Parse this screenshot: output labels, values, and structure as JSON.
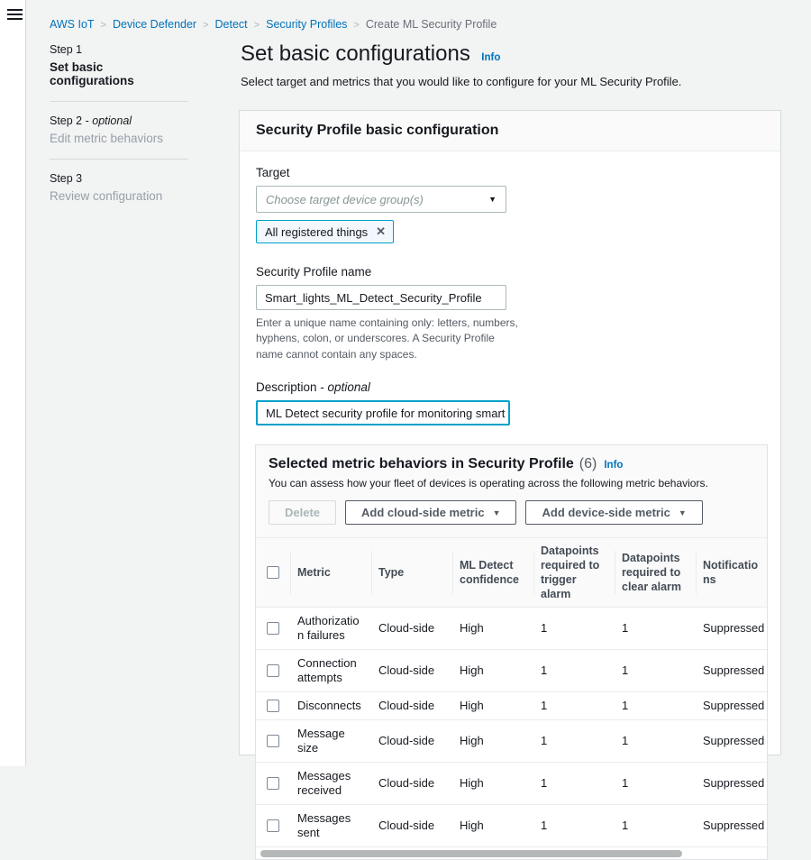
{
  "colors": {
    "link_blue": "#0073bb",
    "focus_teal": "#00a1c9",
    "text_dark": "#16191f",
    "muted": "#545b64"
  },
  "breadcrumb": {
    "separator": ">",
    "items": [
      {
        "label": "AWS IoT",
        "link": true
      },
      {
        "label": "Device Defender",
        "link": true
      },
      {
        "label": "Detect",
        "link": true
      },
      {
        "label": "Security Profiles",
        "link": true
      },
      {
        "label": "Create ML Security Profile",
        "link": false
      }
    ]
  },
  "steps": [
    {
      "step": "Step 1",
      "optional": "",
      "title": "Set basic configurations",
      "active": true
    },
    {
      "step": "Step 2 -",
      "optional": "optional",
      "title": "Edit metric behaviors",
      "active": false
    },
    {
      "step": "Step 3",
      "optional": "",
      "title": "Review configuration",
      "active": false
    }
  ],
  "header": {
    "title": "Set basic configurations",
    "info_label": "Info",
    "description": "Select target and metrics that you would like to configure for your ML Security Profile."
  },
  "card": {
    "title": "Security Profile basic configuration"
  },
  "form": {
    "target": {
      "label": "Target",
      "placeholder": "Choose target device group(s)",
      "caret": "▼",
      "selected_token": "All registered things",
      "remove_icon": "✕"
    },
    "name": {
      "label": "Security Profile name",
      "value": "Smart_lights_ML_Detect_Security_Profile",
      "help": "Enter a unique name containing only: letters, numbers, hyphens, colon, or underscores. A Security Profile name cannot contain any spaces."
    },
    "description": {
      "label": "Description -",
      "label_optional": "optional",
      "value": "ML Detect security profile for monitoring smart lights"
    }
  },
  "metrics_panel": {
    "title": "Selected metric behaviors in Security Profile",
    "count": "(6)",
    "info_label": "Info",
    "description": "You can assess how your fleet of devices is operating across the following metric behaviors.",
    "buttons": {
      "delete": "Delete",
      "add_cloud": "Add cloud-side metric",
      "add_device": "Add device-side metric",
      "caret": "▼"
    },
    "table": {
      "columns": [
        "Metric",
        "Type",
        "ML Detect confidence",
        "Datapoints required to trigger alarm",
        "Datapoints required to clear alarm",
        "Notifications"
      ],
      "rows": [
        {
          "metric": "Authorization failures",
          "type": "Cloud-side",
          "confidence": "High",
          "trigger": "1",
          "clear": "1",
          "notifications": "Suppressed"
        },
        {
          "metric": "Connection attempts",
          "type": "Cloud-side",
          "confidence": "High",
          "trigger": "1",
          "clear": "1",
          "notifications": "Suppressed"
        },
        {
          "metric": "Disconnects",
          "type": "Cloud-side",
          "confidence": "High",
          "trigger": "1",
          "clear": "1",
          "notifications": "Suppressed"
        },
        {
          "metric": "Message size",
          "type": "Cloud-side",
          "confidence": "High",
          "trigger": "1",
          "clear": "1",
          "notifications": "Suppressed"
        },
        {
          "metric": "Messages received",
          "type": "Cloud-side",
          "confidence": "High",
          "trigger": "1",
          "clear": "1",
          "notifications": "Suppressed"
        },
        {
          "metric": "Messages sent",
          "type": "Cloud-side",
          "confidence": "High",
          "trigger": "1",
          "clear": "1",
          "notifications": "Suppressed"
        }
      ]
    }
  }
}
